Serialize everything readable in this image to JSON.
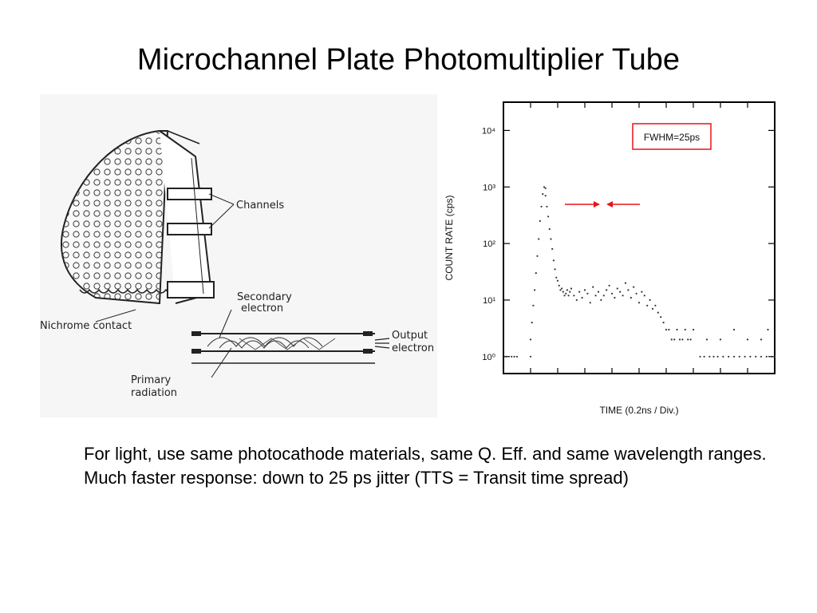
{
  "slide": {
    "title": "Microchannel Plate Photomultiplier Tube",
    "body_lines": [
      "For light, use same photocathode materials, same Q. Eff. and same wavelength ranges.",
      "Much faster response: down to 25 ps  jitter (TTS = Transit time spread)"
    ]
  },
  "diagram": {
    "labels": {
      "channels": "Channels",
      "secondary_1": "Secondary",
      "secondary_2": "electron",
      "nichrome": "Nichrome  contact",
      "output_1": "Output",
      "output_2": "electron",
      "primary_1": "Primary",
      "primary_2": "radiation"
    }
  },
  "chart_data": {
    "type": "scatter",
    "title": "",
    "xlabel": "TIME (0.2ns / Div.)",
    "ylabel": "COUNT RATE (cps)",
    "yscale": "log",
    "ytick_labels": [
      "10⁰",
      "10¹",
      "10²",
      "10³",
      "10⁴"
    ],
    "ylim": [
      0.5,
      50000
    ],
    "xlim_ns": [
      0,
      2.0
    ],
    "annotation": "FWHM=25ps",
    "colors": {
      "annotation": "#e8141a",
      "points": "#333333",
      "frame": "#000000"
    },
    "series": [
      {
        "x_ns": [
          0.02,
          0.06,
          0.08,
          0.1,
          0.2,
          0.2,
          0.21,
          0.22,
          0.23,
          0.24,
          0.25,
          0.26,
          0.27,
          0.28,
          0.29,
          0.3,
          0.31,
          0.31,
          0.32,
          0.33,
          0.34,
          0.35,
          0.36,
          0.37,
          0.38,
          0.39,
          0.4,
          0.41,
          0.42,
          0.43,
          0.44,
          0.45,
          0.46,
          0.47,
          0.48,
          0.49,
          0.5,
          0.52,
          0.54,
          0.56,
          0.58,
          0.6,
          0.62,
          0.64,
          0.66,
          0.68,
          0.7,
          0.72,
          0.74,
          0.76,
          0.78,
          0.8,
          0.82,
          0.84,
          0.86,
          0.88,
          0.9,
          0.92,
          0.94,
          0.96,
          0.98,
          1.0,
          1.02,
          1.04,
          1.06,
          1.08,
          1.1,
          1.12,
          1.14,
          1.16,
          1.18,
          1.2,
          1.22,
          1.24,
          1.26,
          1.28,
          1.3,
          1.32,
          1.34,
          1.36,
          1.38,
          1.4,
          1.45,
          1.48,
          1.52,
          1.55,
          1.58,
          1.62,
          1.66,
          1.7,
          1.74,
          1.78,
          1.82,
          1.86,
          1.9,
          1.94,
          1.98,
          1.5,
          1.6,
          1.7,
          1.8,
          1.9,
          1.95,
          2.0
        ],
        "y": [
          1,
          1,
          1,
          1,
          1,
          2,
          4,
          8,
          15,
          30,
          60,
          120,
          250,
          450,
          750,
          1000,
          950,
          700,
          450,
          300,
          180,
          120,
          80,
          50,
          35,
          25,
          22,
          18,
          15,
          16,
          14,
          12,
          13,
          15,
          12,
          14,
          16,
          12,
          10,
          14,
          11,
          15,
          13,
          9,
          17,
          12,
          14,
          10,
          12,
          15,
          18,
          13,
          11,
          16,
          14,
          12,
          20,
          15,
          11,
          17,
          13,
          9,
          14,
          12,
          8,
          10,
          7,
          8,
          6,
          5,
          4,
          3,
          3,
          2,
          2,
          3,
          2,
          2,
          3,
          2,
          2,
          3,
          1,
          1,
          1,
          1,
          1,
          1,
          1,
          1,
          1,
          1,
          1,
          1,
          1,
          1,
          1,
          2,
          2,
          3,
          2,
          2,
          3,
          1
        ]
      }
    ]
  }
}
